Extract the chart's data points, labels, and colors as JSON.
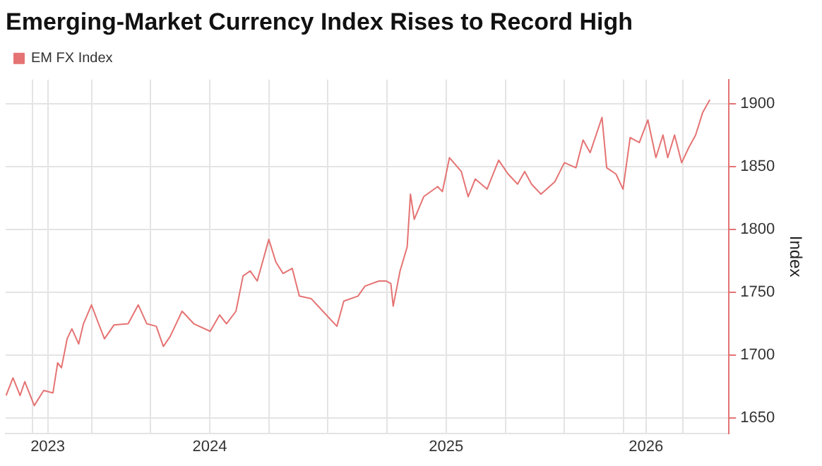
{
  "chart_data": {
    "type": "line",
    "title": "Emerging-Market Currency Index Rises to Record High",
    "ylabel": "Index",
    "legend": "top left",
    "grid": true,
    "marker": "none",
    "line_style": "solid",
    "xlim": [
      2023.137,
      2026.196
    ],
    "ylim": [
      1638,
      1919
    ],
    "xticks": [
      {
        "value": 2023.25,
        "label": null
      },
      {
        "value": 2023.315,
        "label": "2023"
      },
      {
        "value": 2023.5,
        "label": null
      },
      {
        "value": 2023.75,
        "label": null
      },
      2024,
      {
        "value": 2024.25,
        "label": null
      },
      {
        "value": 2024.5,
        "label": null
      },
      {
        "value": 2024.75,
        "label": null
      },
      2025,
      {
        "value": 2025.25,
        "label": null
      },
      {
        "value": 2025.5,
        "label": null
      },
      {
        "value": 2025.75,
        "label": null
      },
      {
        "value": 2025.845,
        "label": "2026"
      },
      {
        "value": 2026,
        "label": null
      }
    ],
    "yticks": [
      1650,
      1700,
      1750,
      1800,
      1850,
      1900
    ],
    "series": [
      {
        "name": "EM FX Index",
        "color": "#e57373",
        "x": [
          2023.139,
          2023.168,
          2023.198,
          2023.218,
          2023.258,
          2023.298,
          2023.337,
          2023.357,
          2023.373,
          2023.397,
          2023.417,
          2023.446,
          2023.466,
          2023.5,
          2023.526,
          2023.555,
          2023.595,
          2023.655,
          2023.698,
          2023.734,
          2023.774,
          2023.804,
          2023.833,
          2023.883,
          2023.933,
          2024.002,
          2024.042,
          2024.071,
          2024.111,
          2024.141,
          2024.171,
          2024.201,
          2024.25,
          2024.28,
          2024.31,
          2024.349,
          2024.379,
          2024.429,
          2024.488,
          2024.538,
          2024.567,
          2024.627,
          2024.657,
          2024.716,
          2024.746,
          2024.766,
          2024.776,
          2024.805,
          2024.835,
          2024.849,
          2024.865,
          2024.905,
          2024.964,
          2024.984,
          2025.014,
          2025.064,
          2025.093,
          2025.123,
          2025.173,
          2025.222,
          2025.262,
          2025.302,
          2025.332,
          2025.361,
          2025.401,
          2025.46,
          2025.5,
          2025.549,
          2025.579,
          2025.609,
          2025.659,
          2025.679,
          2025.718,
          2025.748,
          2025.778,
          2025.817,
          2025.853,
          2025.887,
          2025.917,
          2025.937,
          2025.966,
          2025.996,
          2026.026,
          2026.055,
          2026.085,
          2026.115
        ],
        "values": [
          1668,
          1682,
          1668,
          1679,
          1660,
          1672,
          1670,
          1694,
          1690,
          1713,
          1721,
          1709,
          1725,
          1740,
          1727,
          1713,
          1724,
          1725,
          1740,
          1725,
          1723,
          1707,
          1715,
          1735,
          1725,
          1719,
          1732,
          1725,
          1735,
          1763,
          1767,
          1759,
          1792,
          1774,
          1765,
          1769,
          1747,
          1745,
          1733,
          1723,
          1743,
          1747,
          1755,
          1759,
          1759,
          1757,
          1739,
          1767,
          1786,
          1828,
          1808,
          1826,
          1834,
          1830,
          1857,
          1846,
          1826,
          1840,
          1832,
          1855,
          1844,
          1836,
          1846,
          1836,
          1828,
          1838,
          1853,
          1849,
          1871,
          1861,
          1889,
          1849,
          1844,
          1832,
          1873,
          1869,
          1887,
          1857,
          1875,
          1857,
          1875,
          1853,
          1865,
          1875,
          1893,
          1903
        ]
      }
    ]
  }
}
